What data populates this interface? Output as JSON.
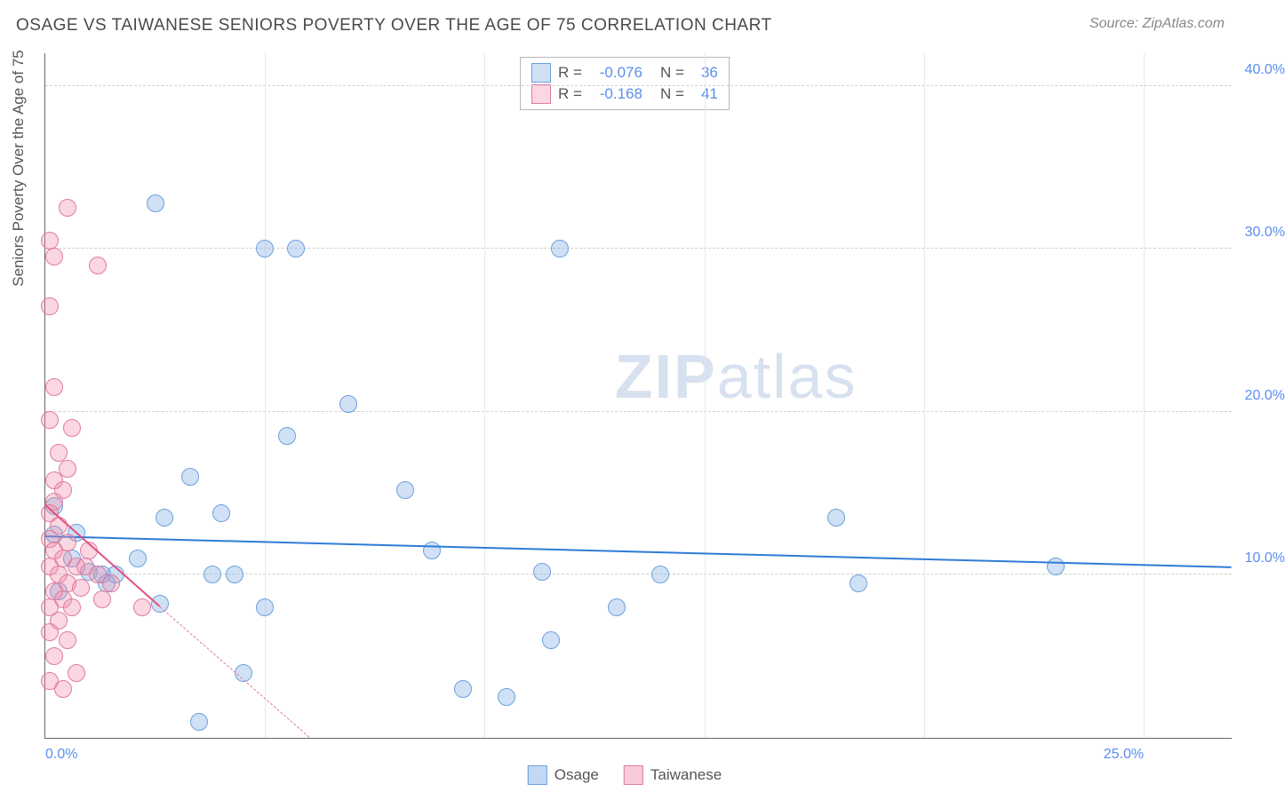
{
  "header": {
    "title": "OSAGE VS TAIWANESE SENIORS POVERTY OVER THE AGE OF 75 CORRELATION CHART",
    "source": "Source: ZipAtlas.com"
  },
  "watermark": {
    "zip": "ZIP",
    "atlas": "atlas"
  },
  "chart": {
    "type": "scatter",
    "ylabel": "Seniors Poverty Over the Age of 75",
    "background_color": "#ffffff",
    "grid_color": "#d0d0d0",
    "axis_color": "#666666",
    "xlim": [
      0,
      27
    ],
    "ylim": [
      0,
      42
    ],
    "yticks": [
      {
        "v": 10,
        "label": "10.0%"
      },
      {
        "v": 20,
        "label": "20.0%"
      },
      {
        "v": 30,
        "label": "30.0%"
      },
      {
        "v": 40,
        "label": "40.0%"
      }
    ],
    "xticks": [
      {
        "v": 0,
        "label": "0.0%"
      },
      {
        "v": 25,
        "label": "25.0%"
      }
    ],
    "xgrid": [
      5,
      10,
      15,
      20,
      25
    ],
    "series": [
      {
        "name": "Osage",
        "fill": "rgba(120,170,230,0.35)",
        "stroke": "#6fa0db",
        "marker_radius": 10,
        "trend_color": "#2e7cd6",
        "trend": {
          "x1": 0,
          "y1": 12.3,
          "x2": 27,
          "y2": 10.4
        },
        "dash_ext": null,
        "stats": {
          "r": "-0.076",
          "n": "36"
        },
        "points": [
          {
            "x": 2.5,
            "y": 32.8
          },
          {
            "x": 5.0,
            "y": 30.0
          },
          {
            "x": 5.7,
            "y": 30.0
          },
          {
            "x": 0.2,
            "y": 14.2
          },
          {
            "x": 0.2,
            "y": 12.5
          },
          {
            "x": 6.9,
            "y": 20.5
          },
          {
            "x": 5.5,
            "y": 18.5
          },
          {
            "x": 3.3,
            "y": 16.0
          },
          {
            "x": 4.0,
            "y": 13.8
          },
          {
            "x": 2.7,
            "y": 13.5
          },
          {
            "x": 0.6,
            "y": 11.0
          },
          {
            "x": 1.0,
            "y": 10.2
          },
          {
            "x": 1.3,
            "y": 10.0
          },
          {
            "x": 1.6,
            "y": 10.0
          },
          {
            "x": 2.1,
            "y": 11.0
          },
          {
            "x": 0.7,
            "y": 12.6
          },
          {
            "x": 2.6,
            "y": 8.2
          },
          {
            "x": 3.8,
            "y": 10.0
          },
          {
            "x": 4.3,
            "y": 10.0
          },
          {
            "x": 4.5,
            "y": 4.0
          },
          {
            "x": 5.0,
            "y": 8.0
          },
          {
            "x": 3.5,
            "y": 1.0
          },
          {
            "x": 8.2,
            "y": 15.2
          },
          {
            "x": 8.8,
            "y": 11.5
          },
          {
            "x": 9.5,
            "y": 3.0
          },
          {
            "x": 10.5,
            "y": 2.5
          },
          {
            "x": 11.3,
            "y": 10.2
          },
          {
            "x": 11.5,
            "y": 6.0
          },
          {
            "x": 13.0,
            "y": 8.0
          },
          {
            "x": 11.7,
            "y": 30.0
          },
          {
            "x": 14.0,
            "y": 10.0
          },
          {
            "x": 18.5,
            "y": 9.5
          },
          {
            "x": 18.0,
            "y": 13.5
          },
          {
            "x": 23.0,
            "y": 10.5
          },
          {
            "x": 0.3,
            "y": 9.0
          },
          {
            "x": 1.4,
            "y": 9.5
          }
        ]
      },
      {
        "name": "Taiwanese",
        "fill": "rgba(240,140,170,0.35)",
        "stroke": "#e07ba0",
        "marker_radius": 10,
        "trend_color": "#e3507f",
        "trend": {
          "x1": 0,
          "y1": 14.2,
          "x2": 2.6,
          "y2": 8.0
        },
        "dash_ext": {
          "x1": 2.6,
          "y1": 8.0,
          "x2": 6,
          "y2": 0
        },
        "stats": {
          "r": "-0.168",
          "n": "41"
        },
        "points": [
          {
            "x": 0.5,
            "y": 32.5
          },
          {
            "x": 0.1,
            "y": 30.5
          },
          {
            "x": 0.2,
            "y": 29.5
          },
          {
            "x": 1.2,
            "y": 29.0
          },
          {
            "x": 0.1,
            "y": 26.5
          },
          {
            "x": 0.2,
            "y": 21.5
          },
          {
            "x": 0.1,
            "y": 19.5
          },
          {
            "x": 0.6,
            "y": 19.0
          },
          {
            "x": 0.3,
            "y": 17.5
          },
          {
            "x": 0.5,
            "y": 16.5
          },
          {
            "x": 0.2,
            "y": 15.8
          },
          {
            "x": 0.4,
            "y": 15.2
          },
          {
            "x": 0.2,
            "y": 14.5
          },
          {
            "x": 0.1,
            "y": 13.8
          },
          {
            "x": 0.3,
            "y": 13.0
          },
          {
            "x": 0.1,
            "y": 12.2
          },
          {
            "x": 0.5,
            "y": 12.0
          },
          {
            "x": 0.2,
            "y": 11.5
          },
          {
            "x": 0.4,
            "y": 11.0
          },
          {
            "x": 0.1,
            "y": 10.5
          },
          {
            "x": 0.7,
            "y": 10.5
          },
          {
            "x": 0.3,
            "y": 10.0
          },
          {
            "x": 0.9,
            "y": 10.5
          },
          {
            "x": 0.5,
            "y": 9.5
          },
          {
            "x": 0.2,
            "y": 9.0
          },
          {
            "x": 0.8,
            "y": 9.2
          },
          {
            "x": 0.4,
            "y": 8.5
          },
          {
            "x": 0.1,
            "y": 8.0
          },
          {
            "x": 0.6,
            "y": 8.0
          },
          {
            "x": 0.3,
            "y": 7.2
          },
          {
            "x": 0.1,
            "y": 6.5
          },
          {
            "x": 0.5,
            "y": 6.0
          },
          {
            "x": 0.2,
            "y": 5.0
          },
          {
            "x": 0.7,
            "y": 4.0
          },
          {
            "x": 0.1,
            "y": 3.5
          },
          {
            "x": 0.4,
            "y": 3.0
          },
          {
            "x": 1.0,
            "y": 11.5
          },
          {
            "x": 1.2,
            "y": 10.0
          },
          {
            "x": 1.3,
            "y": 8.5
          },
          {
            "x": 1.5,
            "y": 9.5
          },
          {
            "x": 2.2,
            "y": 8.0
          }
        ]
      }
    ],
    "legend": [
      {
        "label": "Osage",
        "fill": "rgba(120,170,230,0.45)",
        "stroke": "#6fa0db"
      },
      {
        "label": "Taiwanese",
        "fill": "rgba(240,140,170,0.45)",
        "stroke": "#e07ba0"
      }
    ]
  }
}
